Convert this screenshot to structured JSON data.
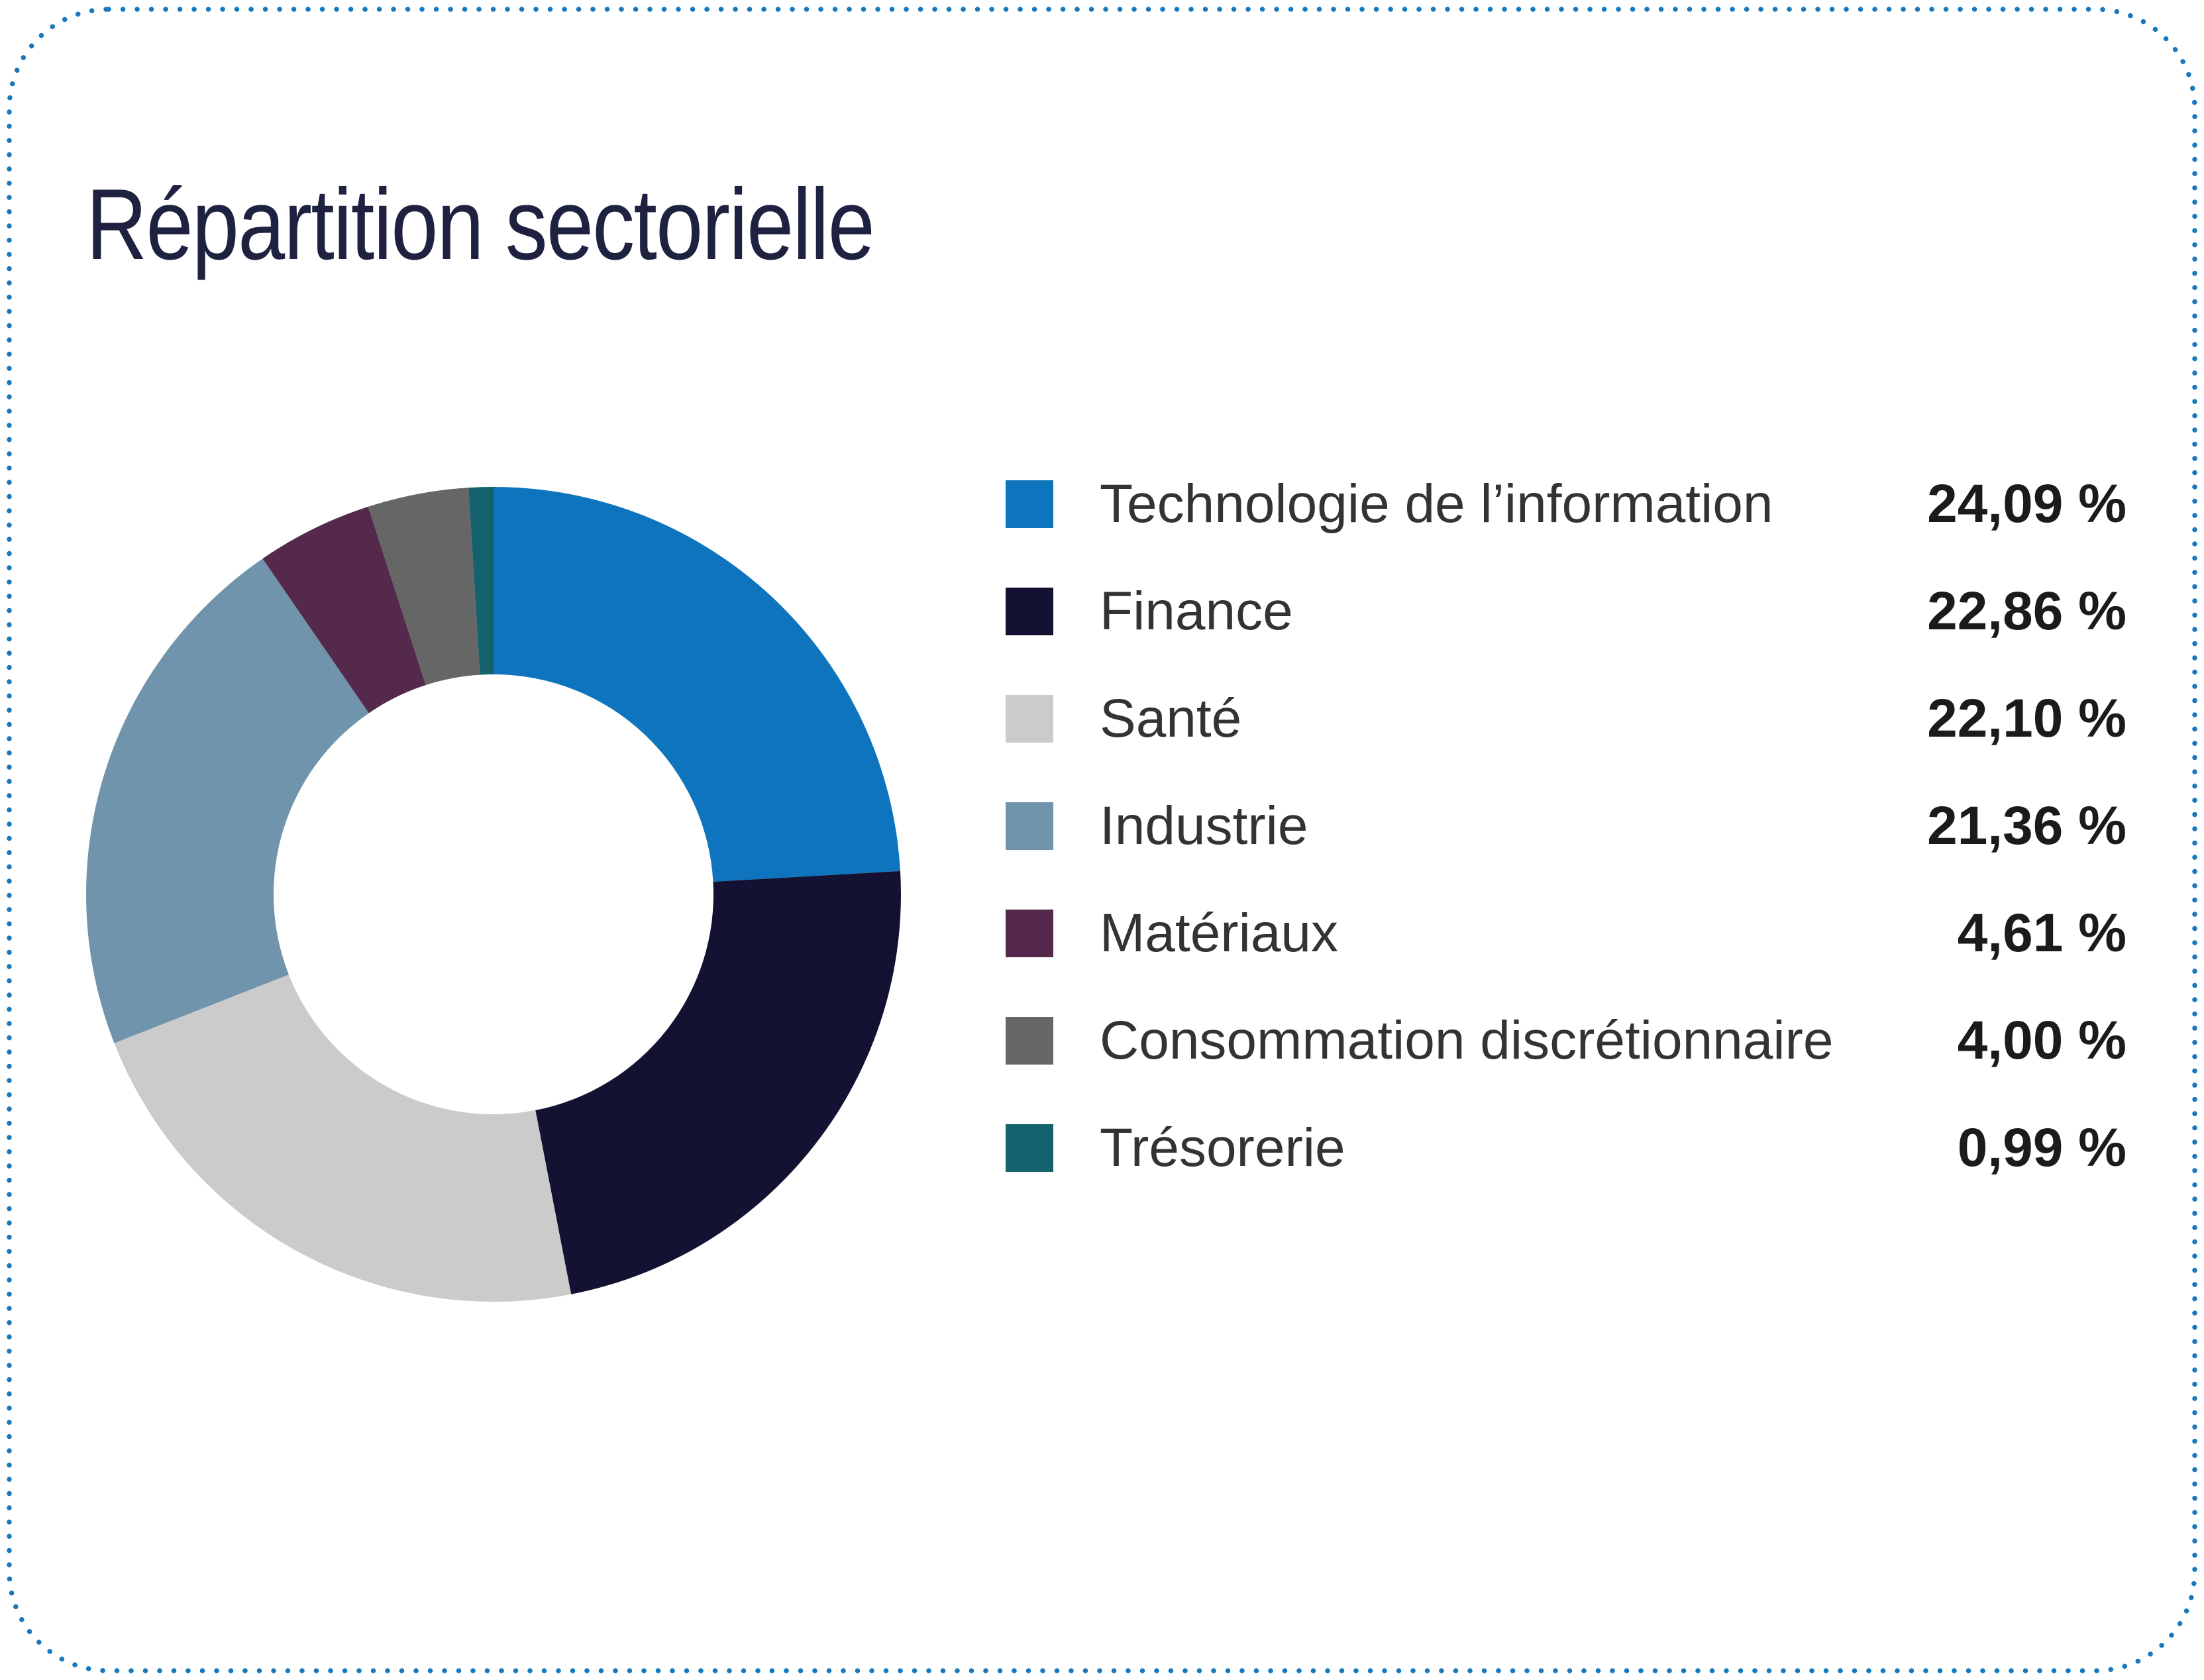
{
  "title": "Répartition sectorielle",
  "title_color": "#1e2240",
  "border_color": "#1878be",
  "chart_data": {
    "type": "pie",
    "subtype": "donut",
    "title": "Répartition sectorielle",
    "start_angle_deg": 0,
    "direction": "clockwise",
    "legend_position": "right",
    "inner_radius_ratio": 0.54,
    "categories": [
      "Technologie de l’information",
      "Finance",
      "Santé",
      "Industrie",
      "Matériaux",
      "Consommation discrétionnaire",
      "Trésorerie"
    ],
    "values": [
      24.09,
      22.86,
      22.1,
      21.36,
      4.61,
      4.0,
      0.99
    ],
    "slices": [
      {
        "label": "Technologie de l’information",
        "value": 24.09,
        "display": "24,09 %",
        "color": "#0e74bd"
      },
      {
        "label": "Finance",
        "value": 22.86,
        "display": "22,86 %",
        "color": "#141233"
      },
      {
        "label": "Santé",
        "value": 22.1,
        "display": "22,10 %",
        "color": "#cbcbcb"
      },
      {
        "label": "Industrie",
        "value": 21.36,
        "display": "21,36 %",
        "color": "#7094ac"
      },
      {
        "label": "Matériaux",
        "value": 4.61,
        "display": "4,61 %",
        "color": "#54294b"
      },
      {
        "label": "Consommation discrétionnaire",
        "value": 4.0,
        "display": "4,00 %",
        "color": "#666666"
      },
      {
        "label": "Trésorerie",
        "value": 0.99,
        "display": "0,99 %",
        "color": "#15616e"
      }
    ]
  }
}
